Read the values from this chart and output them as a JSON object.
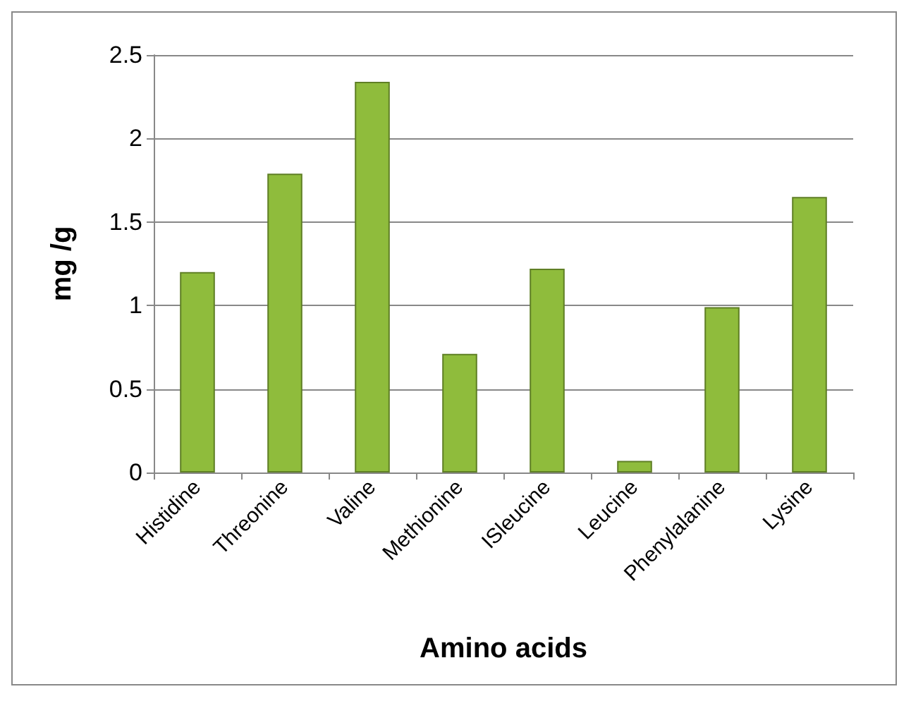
{
  "chart_data": {
    "type": "bar",
    "xlabel": "Amino acids",
    "ylabel": "mg /g",
    "categories": [
      "Histidine",
      "Threonine",
      "Valine",
      "Methionine",
      "ISleucine",
      "Leucine",
      "Phenylalanine",
      "Lysine"
    ],
    "values": [
      1.2,
      1.79,
      2.34,
      0.71,
      1.22,
      0.07,
      0.99,
      1.65
    ],
    "color": "#8fbc3c",
    "ylim": [
      0,
      2.5
    ],
    "yticks": [
      0,
      0.5,
      1,
      1.5,
      2,
      2.5
    ],
    "grid": "y"
  }
}
